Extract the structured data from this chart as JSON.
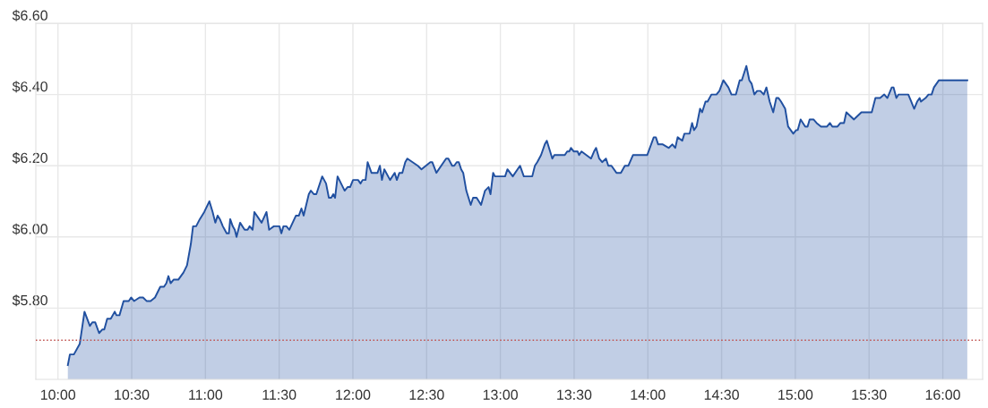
{
  "chart_data": {
    "type": "area",
    "x": [
      10.067,
      10.081,
      10.108,
      10.148,
      10.18,
      10.217,
      10.233,
      10.253,
      10.279,
      10.3,
      10.314,
      10.334,
      10.358,
      10.385,
      10.397,
      10.417,
      10.445,
      10.48,
      10.496,
      10.516,
      10.553,
      10.577,
      10.601,
      10.628,
      10.658,
      10.694,
      10.719,
      10.735,
      10.749,
      10.764,
      10.784,
      10.816,
      10.851,
      10.875,
      10.901,
      10.916,
      10.937,
      10.962,
      10.992,
      11.027,
      11.049,
      11.067,
      11.083,
      11.098,
      11.118,
      11.144,
      11.159,
      11.168,
      11.185,
      11.199,
      11.211,
      11.235,
      11.266,
      11.286,
      11.3,
      11.32,
      11.332,
      11.381,
      11.414,
      11.432,
      11.464,
      11.502,
      11.515,
      11.529,
      11.549,
      11.569,
      11.614,
      11.634,
      11.651,
      11.666,
      11.701,
      11.715,
      11.736,
      11.752,
      11.792,
      11.818,
      11.837,
      11.853,
      11.867,
      11.879,
      11.896,
      11.944,
      11.964,
      11.981,
      12.001,
      12.035,
      12.052,
      12.066,
      12.086,
      12.1,
      12.126,
      12.167,
      12.183,
      12.197,
      12.213,
      12.252,
      12.283,
      12.298,
      12.315,
      12.335,
      12.355,
      12.369,
      12.44,
      12.465,
      12.525,
      12.538,
      12.566,
      12.632,
      12.647,
      12.673,
      12.687,
      12.704,
      12.718,
      12.734,
      12.748,
      12.769,
      12.799,
      12.815,
      12.839,
      12.869,
      12.896,
      12.92,
      12.933,
      12.951,
      12.963,
      13.032,
      13.048,
      13.084,
      13.133,
      13.159,
      13.216,
      13.234,
      13.25,
      13.276,
      13.301,
      13.315,
      13.352,
      13.366,
      13.437,
      13.453,
      13.467,
      13.479,
      13.498,
      13.524,
      13.534,
      13.55,
      13.615,
      13.635,
      13.649,
      13.67,
      13.69,
      13.716,
      13.732,
      13.753,
      13.787,
      13.817,
      13.844,
      13.868,
      13.899,
      13.996,
      14.04,
      14.054,
      14.07,
      14.101,
      14.142,
      14.166,
      14.186,
      14.202,
      14.233,
      14.248,
      14.283,
      14.3,
      14.313,
      14.33,
      14.354,
      14.368,
      14.391,
      14.405,
      14.431,
      14.465,
      14.485,
      14.512,
      14.546,
      14.567,
      14.597,
      14.623,
      14.637,
      14.668,
      14.688,
      14.704,
      14.722,
      14.741,
      14.763,
      14.786,
      14.804,
      14.826,
      14.85,
      14.871,
      14.886,
      14.903,
      14.931,
      14.951,
      14.986,
      15.006,
      15.016,
      15.036,
      15.067,
      15.083,
      15.097,
      15.123,
      15.144,
      15.174,
      15.215,
      15.235,
      15.251,
      15.286,
      15.306,
      15.33,
      15.346,
      15.397,
      15.448,
      15.468,
      15.518,
      15.543,
      15.575,
      15.603,
      15.624,
      15.654,
      15.666,
      15.685,
      15.7,
      15.731,
      15.766,
      15.806,
      15.826,
      15.843,
      15.852,
      15.883,
      15.903,
      15.924,
      15.94,
      15.974,
      16.166
    ],
    "series": [
      {
        "color": "#2150a0",
        "values": [
          5.64,
          5.67,
          5.67,
          5.7,
          5.79,
          5.75,
          5.76,
          5.76,
          5.73,
          5.74,
          5.74,
          5.77,
          5.77,
          5.79,
          5.78,
          5.78,
          5.82,
          5.82,
          5.83,
          5.82,
          5.83,
          5.83,
          5.82,
          5.82,
          5.83,
          5.86,
          5.86,
          5.87,
          5.89,
          5.87,
          5.88,
          5.88,
          5.9,
          5.92,
          5.98,
          6.03,
          6.03,
          6.05,
          6.07,
          6.1,
          6.07,
          6.04,
          6.06,
          6.05,
          6.03,
          6.01,
          6.01,
          6.05,
          6.03,
          6.02,
          6.0,
          6.04,
          6.02,
          6.02,
          6.03,
          6.02,
          6.07,
          6.04,
          6.07,
          6.02,
          6.03,
          6.03,
          6.01,
          6.03,
          6.03,
          6.02,
          6.06,
          6.06,
          6.08,
          6.06,
          6.12,
          6.13,
          6.12,
          6.12,
          6.17,
          6.15,
          6.11,
          6.11,
          6.12,
          6.11,
          6.17,
          6.13,
          6.14,
          6.14,
          6.16,
          6.16,
          6.15,
          6.16,
          6.16,
          6.21,
          6.18,
          6.18,
          6.2,
          6.16,
          6.19,
          6.16,
          6.18,
          6.16,
          6.18,
          6.18,
          6.21,
          6.22,
          6.2,
          6.19,
          6.21,
          6.21,
          6.18,
          6.22,
          6.22,
          6.2,
          6.2,
          6.21,
          6.21,
          6.19,
          6.18,
          6.13,
          6.09,
          6.11,
          6.11,
          6.09,
          6.13,
          6.14,
          6.12,
          6.18,
          6.17,
          6.17,
          6.19,
          6.17,
          6.2,
          6.17,
          6.17,
          6.2,
          6.21,
          6.23,
          6.26,
          6.27,
          6.22,
          6.23,
          6.23,
          6.24,
          6.24,
          6.25,
          6.24,
          6.24,
          6.23,
          6.24,
          6.22,
          6.24,
          6.25,
          6.22,
          6.21,
          6.22,
          6.2,
          6.2,
          6.18,
          6.18,
          6.2,
          6.2,
          6.23,
          6.23,
          6.28,
          6.28,
          6.26,
          6.26,
          6.25,
          6.26,
          6.25,
          6.28,
          6.27,
          6.29,
          6.29,
          6.32,
          6.3,
          6.31,
          6.36,
          6.35,
          6.38,
          6.38,
          6.4,
          6.4,
          6.41,
          6.44,
          6.42,
          6.4,
          6.4,
          6.44,
          6.44,
          6.48,
          6.44,
          6.43,
          6.4,
          6.41,
          6.41,
          6.4,
          6.42,
          6.38,
          6.35,
          6.39,
          6.39,
          6.38,
          6.36,
          6.31,
          6.29,
          6.3,
          6.3,
          6.33,
          6.31,
          6.31,
          6.33,
          6.33,
          6.32,
          6.31,
          6.31,
          6.32,
          6.31,
          6.31,
          6.32,
          6.32,
          6.35,
          6.33,
          6.35,
          6.35,
          6.35,
          6.39,
          6.39,
          6.4,
          6.39,
          6.42,
          6.42,
          6.39,
          6.4,
          6.4,
          6.4,
          6.36,
          6.38,
          6.39,
          6.38,
          6.39,
          6.4,
          6.4,
          6.42,
          6.44,
          6.44
        ]
      }
    ],
    "xlim": [
      9.85,
      16.27
    ],
    "xticks": [
      {
        "value": 10,
        "label": "10:00"
      },
      {
        "value": 10.5,
        "label": "10:30"
      },
      {
        "value": 11,
        "label": "11:00"
      },
      {
        "value": 11.5,
        "label": "11:30"
      },
      {
        "value": 12,
        "label": "12:00"
      },
      {
        "value": 12.5,
        "label": "12:30"
      },
      {
        "value": 13,
        "label": "13:00"
      },
      {
        "value": 13.5,
        "label": "13:30"
      },
      {
        "value": 14,
        "label": "14:00"
      },
      {
        "value": 14.5,
        "label": "14:30"
      },
      {
        "value": 15,
        "label": "15:00"
      },
      {
        "value": 15.5,
        "label": "15:30"
      },
      {
        "value": 16,
        "label": "16:00"
      }
    ],
    "ylim": [
      5.6,
      6.6
    ],
    "yticks": [
      {
        "value": 5.8,
        "label": "$5.80"
      },
      {
        "value": 6.0,
        "label": "$6.00"
      },
      {
        "value": 6.2,
        "label": "$6.20"
      },
      {
        "value": 6.4,
        "label": "$6.40"
      },
      {
        "value": 6.6,
        "label": "$6.60"
      }
    ],
    "ref_lines": [
      {
        "axis": "y",
        "value": 5.71,
        "color": "#c0504d",
        "line_style": "dotted"
      }
    ],
    "grid": true,
    "marker": "none",
    "line_style": "solid",
    "legend": false
  }
}
